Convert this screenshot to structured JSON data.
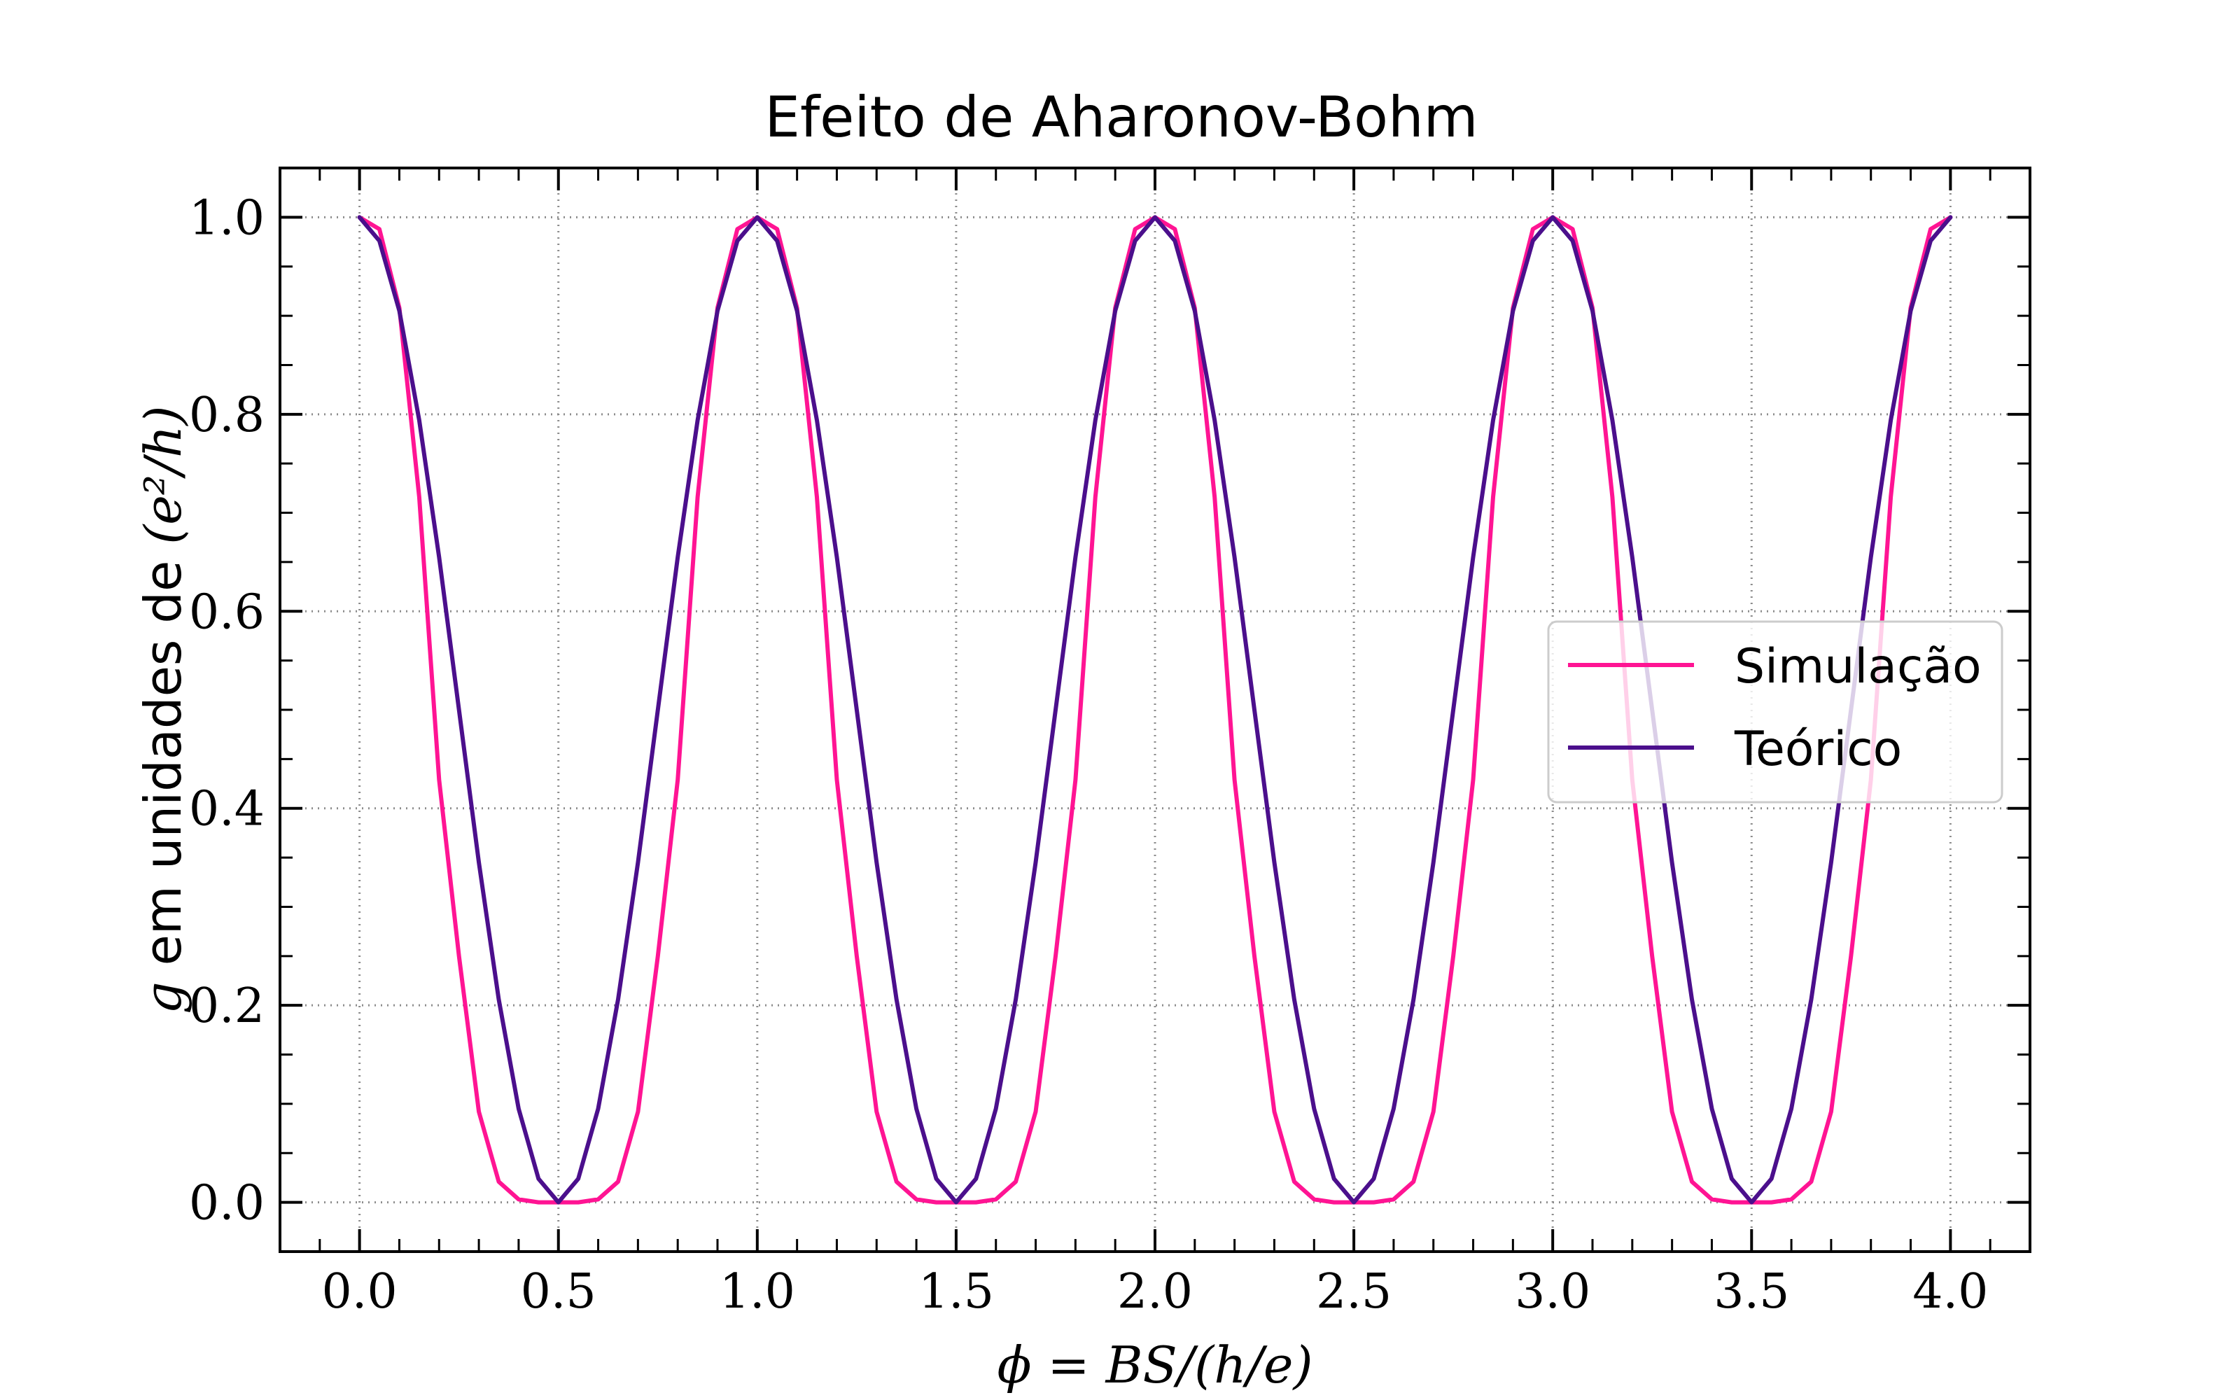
{
  "chart_data": {
    "type": "line",
    "title": "Efeito de Aharonov-Bohm",
    "xlabel": "ϕ = BS/(h/e)",
    "ylabel": {
      "var": "g",
      "middle": " em unidades de ",
      "math": "(e²/h)"
    },
    "xlim": [
      -0.2,
      4.2
    ],
    "ylim": [
      -0.05,
      1.05
    ],
    "xticks": [
      0.0,
      0.5,
      1.0,
      1.5,
      2.0,
      2.5,
      3.0,
      3.5,
      4.0
    ],
    "xtick_labels": [
      "0.0",
      "0.5",
      "1.0",
      "1.5",
      "2.0",
      "2.5",
      "3.0",
      "3.5",
      "4.0"
    ],
    "yticks": [
      0.0,
      0.2,
      0.4,
      0.6,
      0.8,
      1.0
    ],
    "ytick_labels": [
      "0.0",
      "0.2",
      "0.4",
      "0.6",
      "0.8",
      "1.0"
    ],
    "grid": true,
    "grid_style": "dotted",
    "legend_position": "center-right",
    "series": [
      {
        "name": "Simulação",
        "color": "#ff1493",
        "x": [
          0.0,
          0.05,
          0.1,
          0.15,
          0.2,
          0.25,
          0.3,
          0.35,
          0.4,
          0.45,
          0.5,
          0.55,
          0.6,
          0.65,
          0.7,
          0.75,
          0.8,
          0.85,
          0.9,
          0.95,
          1.0,
          1.05,
          1.1,
          1.15,
          1.2,
          1.25,
          1.3,
          1.35,
          1.4,
          1.45,
          1.5,
          1.55,
          1.6,
          1.65,
          1.7,
          1.75,
          1.8,
          1.85,
          1.9,
          1.95,
          2.0,
          2.05,
          2.1,
          2.15,
          2.2,
          2.25,
          2.3,
          2.35,
          2.4,
          2.45,
          2.5,
          2.55,
          2.6,
          2.65,
          2.7,
          2.75,
          2.8,
          2.85,
          2.9,
          2.95,
          3.0,
          3.05,
          3.1,
          3.15,
          3.2,
          3.25,
          3.3,
          3.35,
          3.4,
          3.45,
          3.5,
          3.55,
          3.6,
          3.65,
          3.7,
          3.75,
          3.8,
          3.85,
          3.9,
          3.95,
          4.0
        ],
        "values": [
          1.0,
          0.988,
          0.908,
          0.716,
          0.429,
          0.25,
          0.092,
          0.021,
          0.003,
          0.0,
          0.0,
          0.0,
          0.003,
          0.021,
          0.092,
          0.25,
          0.429,
          0.716,
          0.908,
          0.988,
          1.0,
          0.988,
          0.908,
          0.716,
          0.429,
          0.25,
          0.092,
          0.021,
          0.003,
          0.0,
          0.0,
          0.0,
          0.003,
          0.021,
          0.092,
          0.25,
          0.429,
          0.716,
          0.908,
          0.988,
          1.0,
          0.988,
          0.908,
          0.716,
          0.429,
          0.25,
          0.092,
          0.021,
          0.003,
          0.0,
          0.0,
          0.0,
          0.003,
          0.021,
          0.092,
          0.25,
          0.429,
          0.716,
          0.908,
          0.988,
          1.0,
          0.988,
          0.908,
          0.716,
          0.429,
          0.25,
          0.092,
          0.021,
          0.003,
          0.0,
          0.0,
          0.0,
          0.003,
          0.021,
          0.092,
          0.25,
          0.429,
          0.716,
          0.908,
          0.988,
          1.0
        ]
      },
      {
        "name": "Teórico",
        "color": "#4b0f8c",
        "x": [
          0.0,
          0.05,
          0.1,
          0.15,
          0.2,
          0.25,
          0.3,
          0.35,
          0.4,
          0.45,
          0.5,
          0.55,
          0.6,
          0.65,
          0.7,
          0.75,
          0.8,
          0.85,
          0.9,
          0.95,
          1.0,
          1.05,
          1.1,
          1.15,
          1.2,
          1.25,
          1.3,
          1.35,
          1.4,
          1.45,
          1.5,
          1.55,
          1.6,
          1.65,
          1.7,
          1.75,
          1.8,
          1.85,
          1.9,
          1.95,
          2.0,
          2.05,
          2.1,
          2.15,
          2.2,
          2.25,
          2.3,
          2.35,
          2.4,
          2.45,
          2.5,
          2.55,
          2.6,
          2.65,
          2.7,
          2.75,
          2.8,
          2.85,
          2.9,
          2.95,
          3.0,
          3.05,
          3.1,
          3.15,
          3.2,
          3.25,
          3.3,
          3.35,
          3.4,
          3.45,
          3.5,
          3.55,
          3.6,
          3.65,
          3.7,
          3.75,
          3.8,
          3.85,
          3.9,
          3.95,
          4.0
        ],
        "values": [
          1.0,
          0.976,
          0.905,
          0.794,
          0.655,
          0.5,
          0.345,
          0.206,
          0.095,
          0.024,
          0.0,
          0.024,
          0.095,
          0.206,
          0.345,
          0.5,
          0.655,
          0.794,
          0.905,
          0.976,
          1.0,
          0.976,
          0.905,
          0.794,
          0.655,
          0.5,
          0.345,
          0.206,
          0.095,
          0.024,
          0.0,
          0.024,
          0.095,
          0.206,
          0.345,
          0.5,
          0.655,
          0.794,
          0.905,
          0.976,
          1.0,
          0.976,
          0.905,
          0.794,
          0.655,
          0.5,
          0.345,
          0.206,
          0.095,
          0.024,
          0.0,
          0.024,
          0.095,
          0.206,
          0.345,
          0.5,
          0.655,
          0.794,
          0.905,
          0.976,
          1.0,
          0.976,
          0.905,
          0.794,
          0.655,
          0.5,
          0.345,
          0.206,
          0.095,
          0.024,
          0.0,
          0.024,
          0.095,
          0.206,
          0.345,
          0.5,
          0.655,
          0.794,
          0.905,
          0.976,
          1.0
        ]
      }
    ]
  }
}
